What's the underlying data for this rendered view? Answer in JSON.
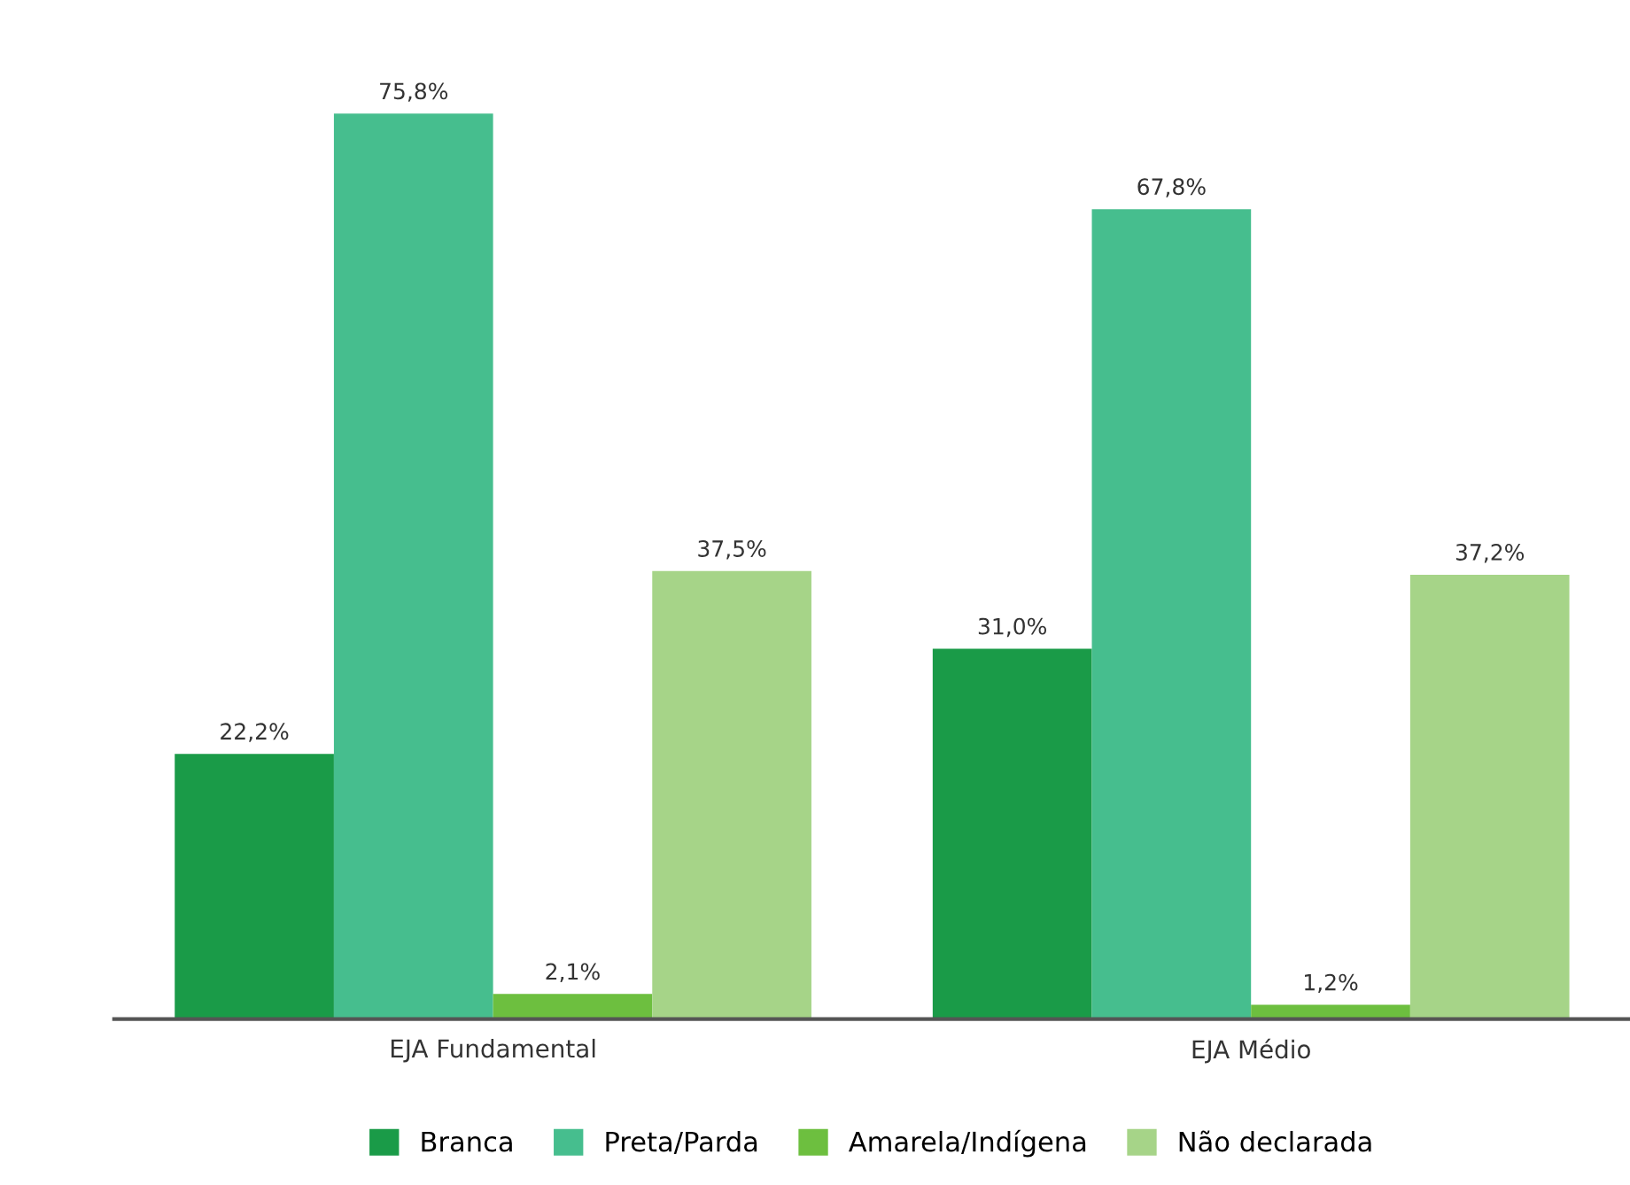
{
  "chart_data": {
    "type": "bar",
    "categories": [
      "EJA Fundamental",
      "EJA Médio"
    ],
    "series": [
      {
        "name": "Branca",
        "color": "#1a9b48",
        "values": [
          22.2,
          31.0
        ],
        "value_labels": [
          "22,2%",
          "31,0%"
        ]
      },
      {
        "name": "Preta/Parda",
        "color": "#46be8e",
        "values": [
          75.8,
          67.8
        ],
        "value_labels": [
          "75,8%",
          "67,8%"
        ]
      },
      {
        "name": "Amarela/Indígena",
        "color": "#6dbf3f",
        "values": [
          2.1,
          1.2
        ],
        "value_labels": [
          "2,1%",
          "1,2%"
        ]
      },
      {
        "name": "Não declarada",
        "color": "#a6d488",
        "values": [
          37.5,
          37.2
        ],
        "value_labels": [
          "37,5%",
          "37,2%"
        ]
      }
    ],
    "legend": "bottom",
    "grid": false
  }
}
